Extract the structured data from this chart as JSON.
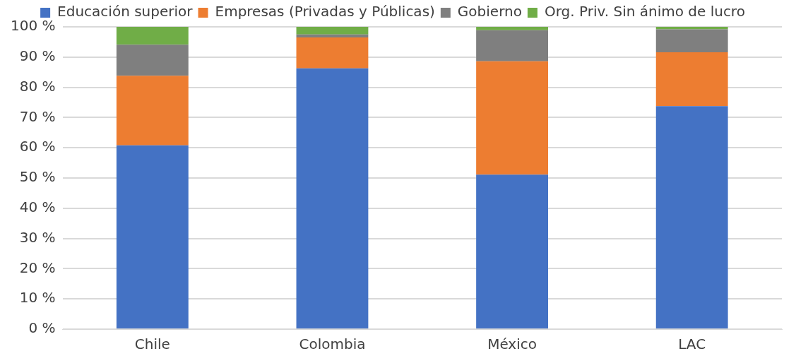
{
  "chart_data": {
    "type": "bar",
    "stacked": true,
    "categories": [
      "Chile",
      "Colombia",
      "México",
      "LAC"
    ],
    "series": [
      {
        "name": "Educación superior",
        "color": "#4472c4",
        "values": [
          60.8,
          86.3,
          51.1,
          73.8
        ]
      },
      {
        "name": "Empresas (Privadas y Públicas)",
        "color": "#ed7d31",
        "values": [
          23.0,
          10.2,
          37.5,
          17.8
        ]
      },
      {
        "name": "Gobierno",
        "color": "#7f7f7f",
        "values": [
          10.3,
          1.0,
          10.3,
          7.6
        ]
      },
      {
        "name": "Org. Priv. Sin ánimo de lucro",
        "color": "#70ad47",
        "values": [
          5.9,
          2.5,
          1.1,
          0.8
        ]
      }
    ],
    "ylim": [
      0,
      100
    ],
    "yticks": [
      {
        "value": 0,
        "label": "0 %"
      },
      {
        "value": 10,
        "label": "10 %"
      },
      {
        "value": 20,
        "label": "20 %"
      },
      {
        "value": 30,
        "label": "30 %"
      },
      {
        "value": 40,
        "label": "40 %"
      },
      {
        "value": 50,
        "label": "50 %"
      },
      {
        "value": 60,
        "label": "60 %"
      },
      {
        "value": 70,
        "label": "70 %"
      },
      {
        "value": 80,
        "label": "80 %"
      },
      {
        "value": 90,
        "label": "90 %"
      },
      {
        "value": 100,
        "label": "100 %"
      }
    ],
    "grid": "y",
    "legend": "top"
  }
}
